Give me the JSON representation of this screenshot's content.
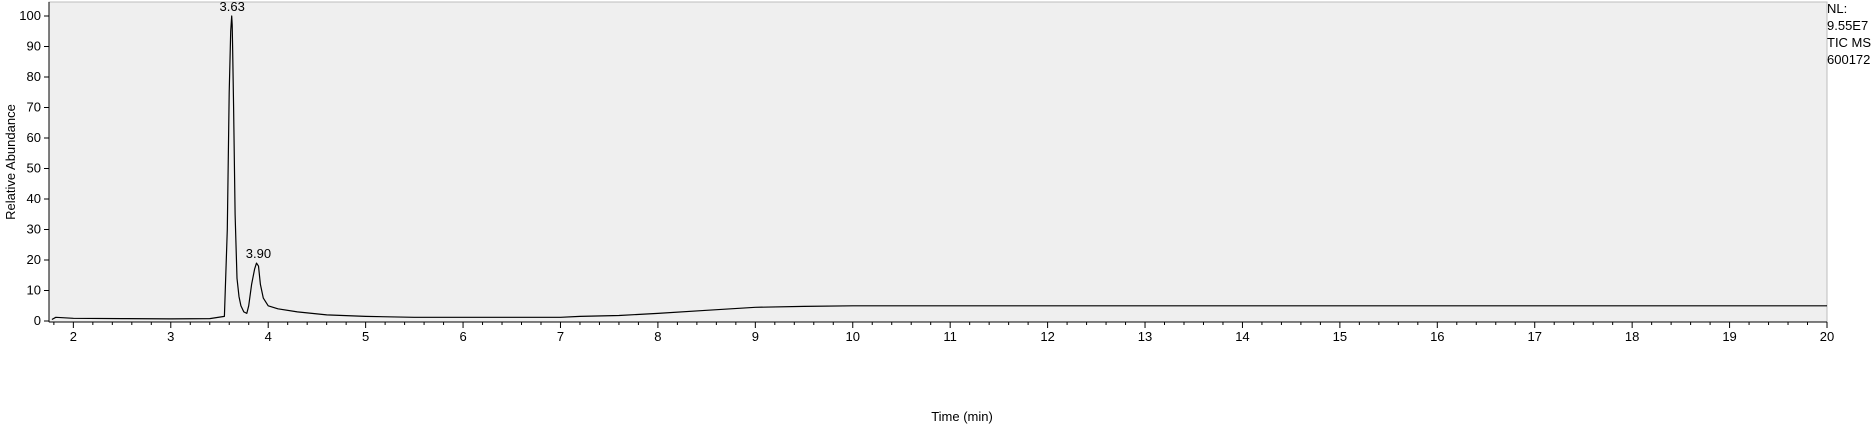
{
  "info": {
    "nl_label": "NL:",
    "nl_value": "9.55E7",
    "scan_label": "TIC  MS",
    "file_id": "600172"
  },
  "chart_data": {
    "type": "line",
    "title": "",
    "xlabel": "Time (min)",
    "ylabel": "Relative Abundance",
    "xlim": [
      1.75,
      20
    ],
    "ylim": [
      0,
      100
    ],
    "x_ticks": [
      2,
      3,
      4,
      5,
      6,
      7,
      8,
      9,
      10,
      11,
      12,
      13,
      14,
      15,
      16,
      17,
      18,
      19,
      20
    ],
    "y_ticks": [
      0,
      10,
      20,
      30,
      40,
      50,
      60,
      70,
      80,
      90,
      100
    ],
    "grid": false,
    "plot_background": "#efefef",
    "line_color": "#000000",
    "series": [
      {
        "x": [
          1.78,
          1.82,
          2.0,
          2.5,
          3.0,
          3.4,
          3.55,
          3.58,
          3.6,
          3.615,
          3.625,
          3.63,
          3.635,
          3.645,
          3.66,
          3.68,
          3.7,
          3.72,
          3.75,
          3.78,
          3.8,
          3.83,
          3.86,
          3.88,
          3.9,
          3.92,
          3.95,
          4.0,
          4.1,
          4.3,
          4.6,
          5.0,
          5.5,
          6.0,
          6.5,
          7.0,
          7.2,
          7.6,
          8.0,
          8.5,
          9.0,
          9.5,
          10.0,
          11.0,
          12.0,
          13.0,
          14.0,
          15.0,
          16.0,
          17.0,
          18.0,
          19.0,
          20.0
        ],
        "y": [
          0.5,
          1.2,
          0.9,
          0.8,
          0.7,
          0.8,
          1.5,
          30,
          75,
          95,
          100,
          97,
          90,
          70,
          35,
          14,
          8,
          5,
          3,
          2.5,
          5,
          12,
          17,
          19,
          18,
          12,
          7.5,
          5,
          4,
          3,
          2,
          1.5,
          1.2,
          1.2,
          1.2,
          1.2,
          1.5,
          1.8,
          2.5,
          3.5,
          4.5,
          4.8,
          5,
          5,
          5,
          5,
          5,
          5,
          5,
          5,
          5,
          5,
          5
        ]
      }
    ],
    "peak_labels": [
      {
        "x": 3.63,
        "y": 100,
        "text": "3.63"
      },
      {
        "x": 3.9,
        "y": 19,
        "text": "3.90"
      }
    ]
  }
}
